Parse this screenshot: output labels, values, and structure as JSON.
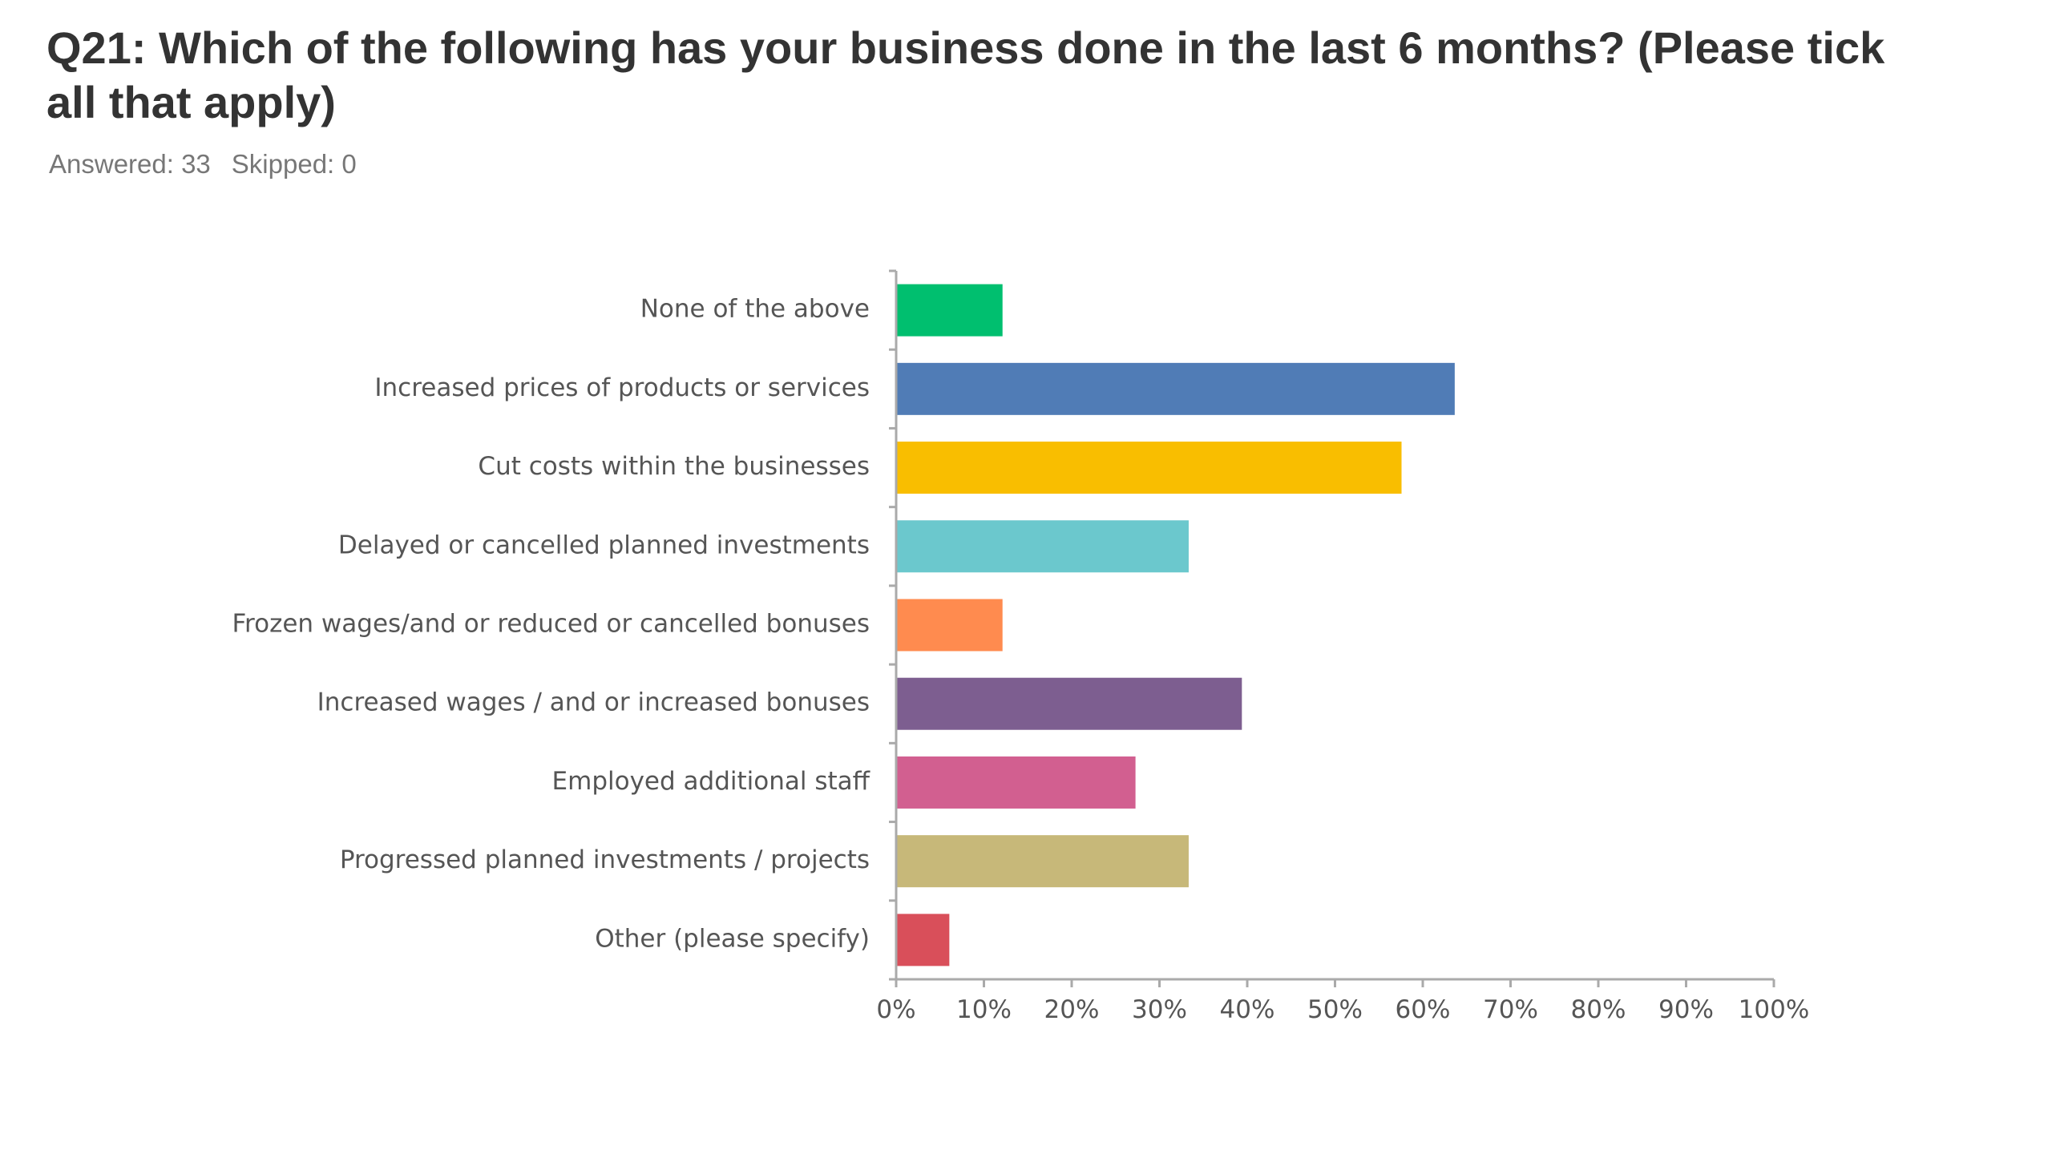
{
  "question": {
    "title": "Q21: Which of the following has your business done in the last 6 months? (Please tick all that apply)",
    "answered": "Answered: 33",
    "skipped": "Skipped: 0"
  },
  "chart_data": {
    "type": "bar",
    "orientation": "horizontal",
    "categories": [
      "None of the above",
      "Increased prices of products or services",
      "Cut costs within the businesses",
      "Delayed or cancelled planned investments",
      "Frozen wages/and or reduced or cancelled bonuses",
      "Increased wages / and or increased bonuses",
      "Employed additional staff",
      "Progressed planned investments / projects",
      "Other (please specify)"
    ],
    "values": [
      12.12,
      63.64,
      57.58,
      33.33,
      12.12,
      39.39,
      27.27,
      33.33,
      6.06
    ],
    "colors": [
      "#00bf6f",
      "#507cb6",
      "#f9be00",
      "#6bc8cd",
      "#ff8b4f",
      "#7d5e90",
      "#d25f90",
      "#c7b879",
      "#d94f5a"
    ],
    "xlim": [
      0,
      100
    ],
    "xticks": [
      "0%",
      "10%",
      "20%",
      "30%",
      "40%",
      "50%",
      "60%",
      "70%",
      "80%",
      "90%",
      "100%"
    ],
    "grid": false,
    "axis_color": "#aaaaaa",
    "label_color": "#555555"
  }
}
